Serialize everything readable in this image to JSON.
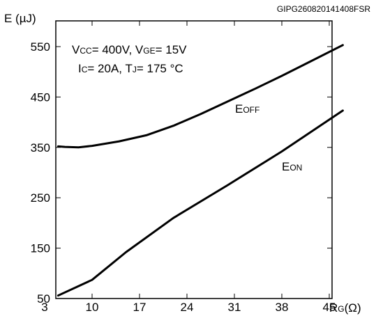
{
  "document_code": "GIPG260820141408FSR",
  "chart_data": {
    "type": "line",
    "ylabel": "E (µJ)",
    "xlabel": {
      "main": "R",
      "sub": "G",
      "unit": "(Ω)"
    },
    "xlim": [
      3,
      48
    ],
    "ylim": [
      50,
      590
    ],
    "x_ticks": [
      3,
      10,
      17,
      24,
      31,
      38,
      45
    ],
    "y_ticks": [
      50,
      150,
      250,
      350,
      450,
      550
    ],
    "grid": false,
    "conditions": [
      [
        {
          "t": "V"
        },
        {
          "t": "CC",
          "sub": true
        },
        {
          "t": "= 400V, V"
        },
        {
          "t": "GE",
          "sub": true
        },
        {
          "t": "= 15V"
        }
      ],
      [
        {
          "t": "I"
        },
        {
          "t": "C",
          "sub": true
        },
        {
          "t": "= 20A, T"
        },
        {
          "t": "J",
          "sub": true
        },
        {
          "t": "= 175 °C"
        }
      ]
    ],
    "series": [
      {
        "name": "EOFF",
        "label_main": "E",
        "label_sub": "OFF",
        "color": "#000000",
        "x": [
          5,
          6,
          8,
          10,
          14,
          18,
          22,
          26,
          30,
          34,
          38,
          42,
          47
        ],
        "y": [
          352,
          351,
          350,
          353,
          362,
          374,
          393,
          416,
          441,
          466,
          492,
          519,
          553
        ]
      },
      {
        "name": "EON",
        "label_main": "E",
        "label_sub": "ON",
        "color": "#000000",
        "x": [
          5,
          10,
          15,
          22,
          30,
          38,
          47
        ],
        "y": [
          56,
          87,
          142,
          210,
          275,
          342,
          423
        ]
      }
    ]
  }
}
